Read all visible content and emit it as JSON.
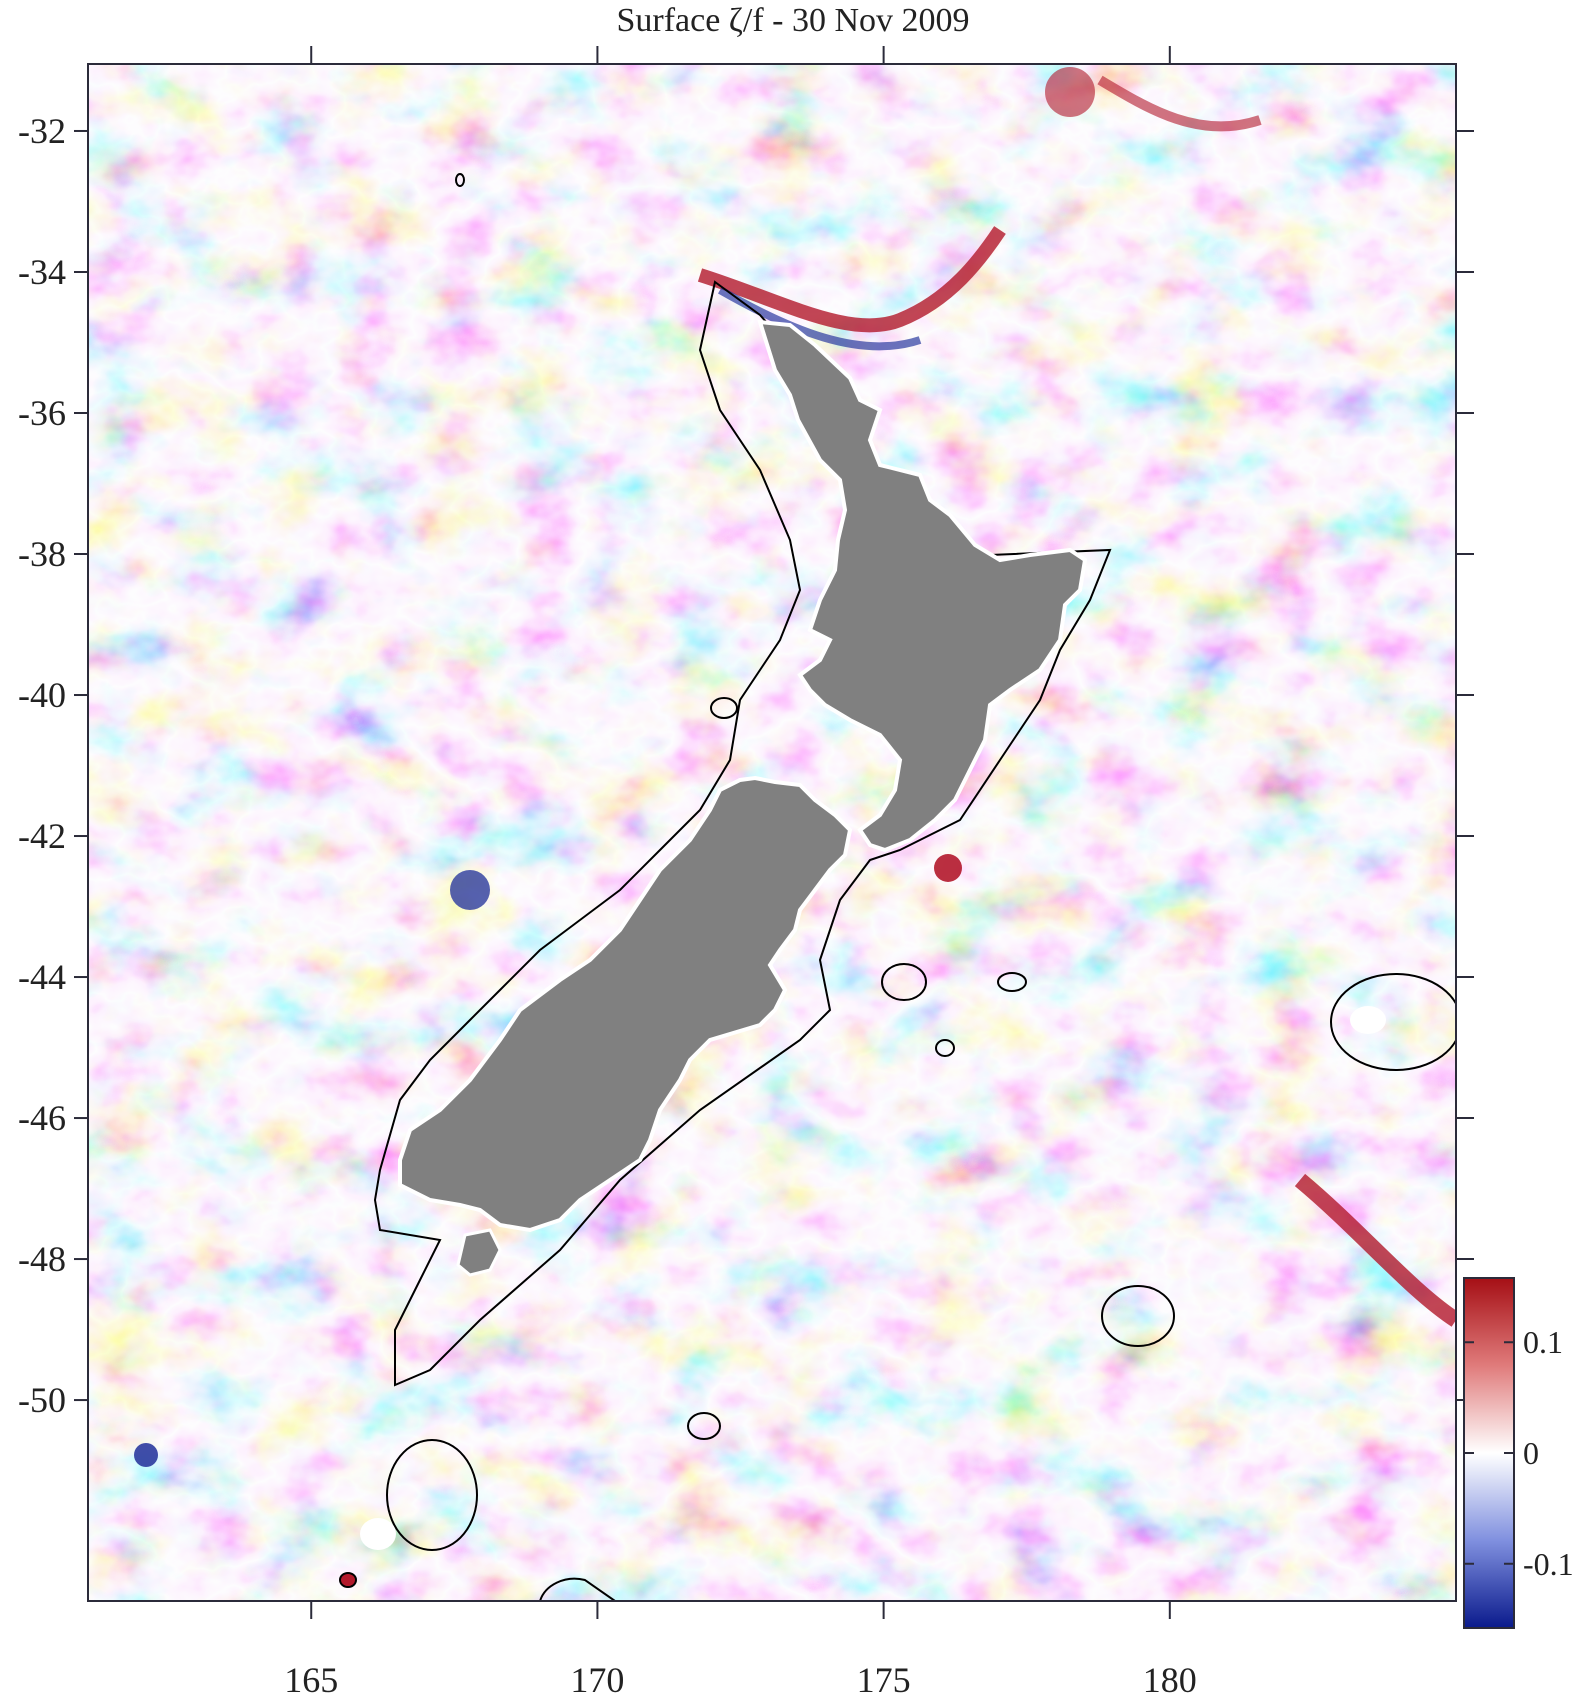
{
  "title": "Surface ζ/f - 30 Nov 2009",
  "map": {
    "x_ticks": [
      "165",
      "170",
      "175",
      "180"
    ],
    "y_ticks": [
      "-32",
      "-34",
      "-36",
      "-38",
      "-40",
      "-42",
      "-44",
      "-46",
      "-48",
      "-50"
    ],
    "land_color": "#808080",
    "coast_color": "#000000",
    "positive_color": "#b2182b",
    "negative_color": "#2b3a9f",
    "zero_color": "#ffffff"
  },
  "colorbar": {
    "ticks": [
      "0.1",
      "0",
      "-0.1"
    ],
    "top_color": "#a50f15",
    "mid_color": "#ffffff",
    "bottom_color": "#0a1a8c"
  }
}
